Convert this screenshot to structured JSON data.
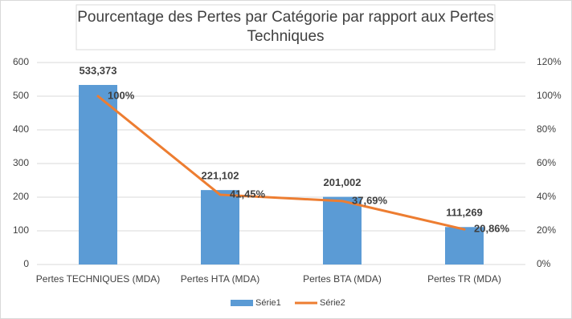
{
  "chart_data": {
    "type": "bar",
    "title": "Pourcentage des Pertes par Catégorie par rapport aux Pertes Techniques",
    "categories": [
      "Pertes TECHNIQUES (MDA)",
      "Pertes HTA (MDA)",
      "Pertes BTA (MDA)",
      "Pertes TR (MDA)"
    ],
    "series": [
      {
        "name": "Série1",
        "type": "bar",
        "color": "#5b9bd5",
        "values": [
          533.373,
          221.102,
          201.002,
          111.269
        ],
        "value_labels": [
          "533,373",
          "221,102",
          "201,002",
          "111,269"
        ]
      },
      {
        "name": "Série2",
        "type": "line",
        "axis": "y2",
        "color": "#ed7d31",
        "values": [
          100,
          41.45,
          37.69,
          20.86
        ],
        "value_labels": [
          "100%",
          "41,45%",
          "37,69%",
          "20,86%"
        ]
      }
    ],
    "ylim": [
      0,
      600
    ],
    "yticks": [
      0,
      100,
      200,
      300,
      400,
      500,
      600
    ],
    "y2lim": [
      0,
      120
    ],
    "y2ticks": [
      {
        "value": 0,
        "label": "0%"
      },
      {
        "value": 20,
        "label": "20%"
      },
      {
        "value": 40,
        "label": "40%"
      },
      {
        "value": 60,
        "label": "60%"
      },
      {
        "value": 80,
        "label": "80%"
      },
      {
        "value": 100,
        "label": "100%"
      },
      {
        "value": 120,
        "label": "120%"
      }
    ],
    "grid": true,
    "legend": "bottom"
  }
}
